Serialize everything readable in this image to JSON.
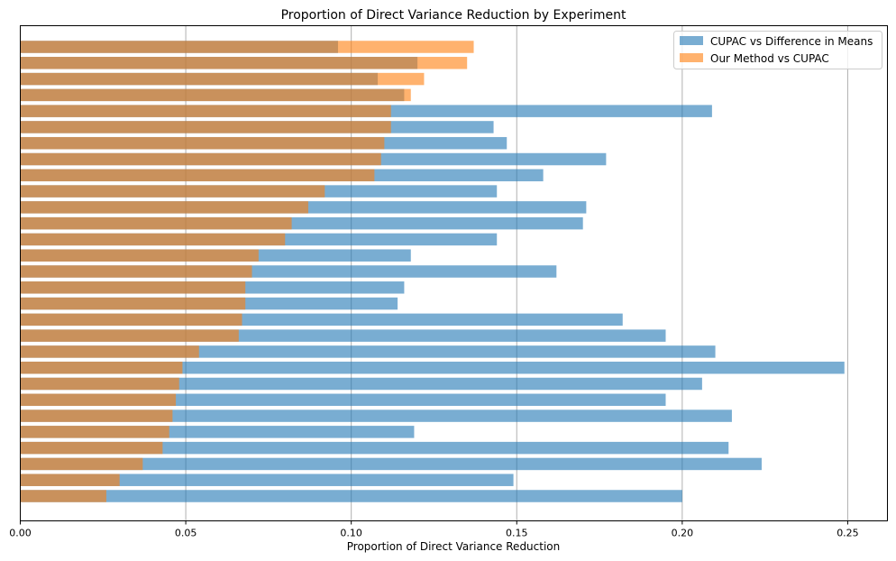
{
  "chart_data": {
    "type": "bar",
    "orientation": "horizontal",
    "title": "Proportion of Direct Variance Reduction by Experiment",
    "xlabel": "Proportion of Direct Variance Reduction",
    "ylabel": "",
    "xlim": [
      0,
      0.262
    ],
    "xticks": [
      0.0,
      0.05,
      0.1,
      0.15,
      0.2,
      0.25
    ],
    "xtick_labels": [
      "0.00",
      "0.05",
      "0.10",
      "0.15",
      "0.20",
      "0.25"
    ],
    "grid": "x",
    "legend": "top-right",
    "series": [
      {
        "name": "CUPAC vs Difference in Means",
        "color": "#1f77b4",
        "alpha": 0.6,
        "values": [
          0.2,
          0.149,
          0.224,
          0.214,
          0.119,
          0.215,
          0.195,
          0.206,
          0.249,
          0.21,
          0.195,
          0.182,
          0.114,
          0.116,
          0.162,
          0.118,
          0.144,
          0.17,
          0.171,
          0.144,
          0.158,
          0.177,
          0.147,
          0.143,
          0.209,
          0.116,
          0.108,
          0.12,
          0.096
        ]
      },
      {
        "name": "Our Method vs CUPAC",
        "color": "#ff7f0e",
        "alpha": 0.6,
        "values": [
          0.026,
          0.03,
          0.037,
          0.043,
          0.045,
          0.046,
          0.047,
          0.048,
          0.049,
          0.054,
          0.066,
          0.067,
          0.068,
          0.068,
          0.07,
          0.072,
          0.08,
          0.082,
          0.087,
          0.092,
          0.107,
          0.109,
          0.11,
          0.112,
          0.112,
          0.118,
          0.122,
          0.135,
          0.137
        ]
      }
    ]
  }
}
